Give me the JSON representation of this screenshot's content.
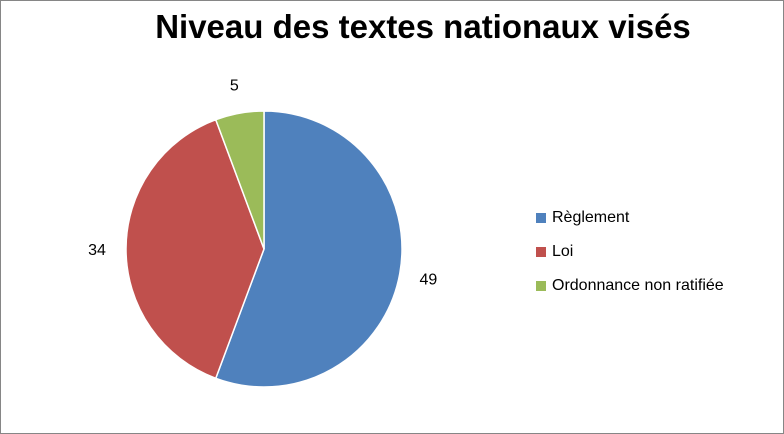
{
  "chart_data": {
    "type": "pie",
    "title": "Niveau des textes nationaux visés",
    "categories": [
      "Règlement",
      "Loi",
      "Ordonnance non ratifiée"
    ],
    "values": [
      49,
      34,
      5
    ],
    "colors": [
      "#4F81BD",
      "#C0504D",
      "#9BBB59"
    ],
    "legend": "right",
    "data_labels": true
  }
}
